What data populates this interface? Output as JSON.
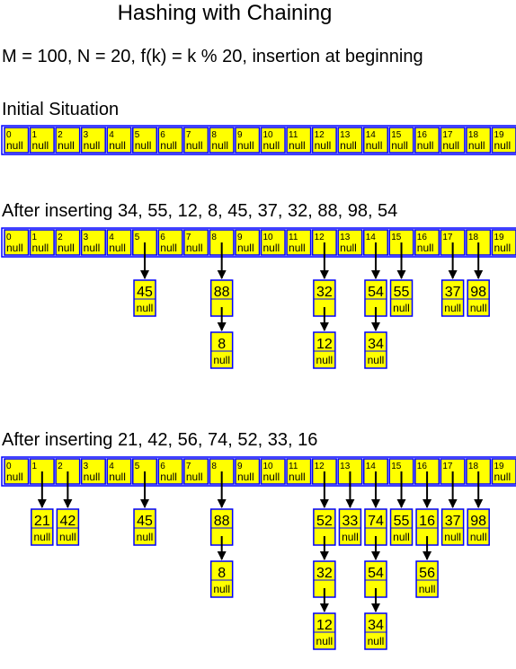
{
  "title": "Hashing with Chaining",
  "parameters": "M = 100, N = 20, f(k) = k % 20, insertion at beginning",
  "null_label": "null",
  "colors": {
    "cell_fill": "#ffff00",
    "cell_border": "#0000ff",
    "arrow": "#000000"
  },
  "slots": [
    "0",
    "1",
    "2",
    "3",
    "4",
    "5",
    "6",
    "7",
    "8",
    "9",
    "10",
    "11",
    "12",
    "13",
    "14",
    "15",
    "16",
    "17",
    "18",
    "19"
  ],
  "states": [
    {
      "heading": "Initial Situation",
      "chains": [
        [],
        [],
        [],
        [],
        [],
        [],
        [],
        [],
        [],
        [],
        [],
        [],
        [],
        [],
        [],
        [],
        [],
        [],
        [],
        []
      ]
    },
    {
      "heading": "After inserting 34, 55, 12, 8, 45, 37, 32, 88, 98, 54",
      "chains": [
        [],
        [],
        [],
        [],
        [],
        [
          "45"
        ],
        [],
        [],
        [
          "88",
          "8"
        ],
        [],
        [],
        [],
        [
          "32",
          "12"
        ],
        [],
        [
          "54",
          "34"
        ],
        [
          "55"
        ],
        [],
        [
          "37"
        ],
        [
          "98"
        ],
        []
      ]
    },
    {
      "heading": "After inserting 21, 42, 56, 74, 52, 33, 16",
      "chains": [
        [],
        [
          "21"
        ],
        [
          "42"
        ],
        [],
        [],
        [
          "45"
        ],
        [],
        [],
        [
          "88",
          "8"
        ],
        [],
        [],
        [],
        [
          "52",
          "32",
          "12"
        ],
        [
          "33"
        ],
        [
          "74",
          "54",
          "34"
        ],
        [
          "55"
        ],
        [
          "16",
          "56"
        ],
        [
          "37"
        ],
        [
          "98"
        ],
        []
      ]
    }
  ]
}
